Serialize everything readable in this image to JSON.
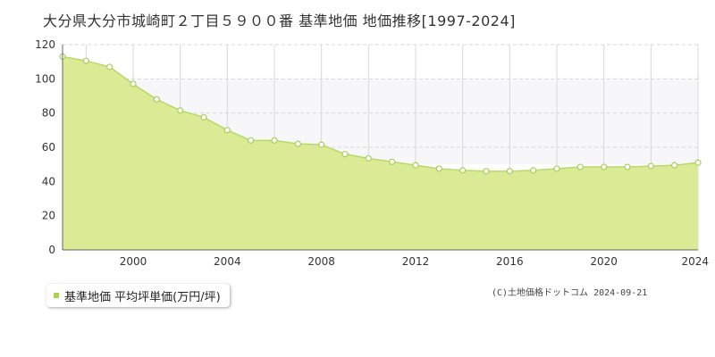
{
  "title": "大分県大分市城崎町２丁目５９００番 基準地価 地価推移[1997-2024]",
  "legend": {
    "label": "基準地価 平均坪単価(万円/坪)"
  },
  "credit": "(C)土地価格ドットコム 2024-09-21",
  "colors": {
    "area": "#dbeb95",
    "line": "#b5d96a",
    "marker_stroke": "#a8cf5a",
    "band": "#f7f7f9",
    "grid": "#d8d8d8"
  },
  "chart_data": {
    "type": "area",
    "title": "大分県大分市城崎町２丁目５９００番 基準地価 地価推移[1997-2024]",
    "xlabel": "",
    "ylabel": "",
    "xlim": [
      1997,
      2024
    ],
    "ylim": [
      0,
      120
    ],
    "x_ticks": [
      2000,
      2004,
      2008,
      2012,
      2016,
      2020,
      2024
    ],
    "y_ticks": [
      0,
      20,
      40,
      60,
      80,
      100,
      120
    ],
    "shaded_band": [
      50,
      100
    ],
    "grid": true,
    "legend_position": "bottom-left",
    "series": [
      {
        "name": "基準地価 平均坪単価(万円/坪)",
        "x": [
          1997,
          1998,
          1999,
          2000,
          2001,
          2002,
          2003,
          2004,
          2005,
          2006,
          2007,
          2008,
          2009,
          2010,
          2011,
          2012,
          2013,
          2014,
          2015,
          2016,
          2017,
          2018,
          2019,
          2020,
          2021,
          2022,
          2023,
          2024
        ],
        "values": [
          113,
          110.5,
          107,
          97,
          88,
          81.5,
          77.5,
          70,
          64,
          64,
          62,
          61.5,
          56,
          53.5,
          51.5,
          49.5,
          47.5,
          46.5,
          46,
          46,
          46.5,
          47.5,
          48.5,
          48.5,
          48.5,
          49,
          49.5,
          51
        ]
      }
    ]
  }
}
